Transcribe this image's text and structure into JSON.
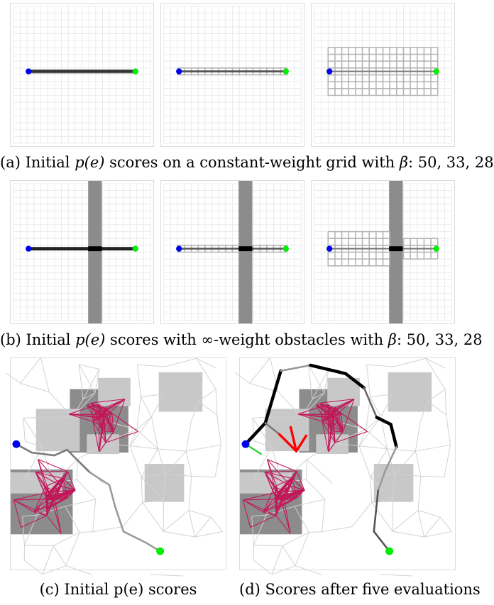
{
  "captions": {
    "a": {
      "prefix": "(a) Initial ",
      "math": "p(e)",
      "suffix": " scores on a constant-weight grid with ",
      "beta": "β",
      "values": ": 50, 33, 28"
    },
    "b": {
      "prefix": "(b) Initial ",
      "math": "p(e)",
      "middle": " scores with ",
      "inf": "∞",
      "suffix": "-weight obstacles with ",
      "beta": "β",
      "values": ": 50, 33, 28"
    },
    "c": {
      "prefix": "(c) Initial ",
      "math": "p(e)",
      "suffix": " scores"
    },
    "d": {
      "text": "(d) Scores after five evaluations"
    }
  },
  "colors": {
    "start": "#0000ee",
    "goal": "#00ee00",
    "obstacle_dark": "#8c8c8c",
    "obstacle_light": "#c8c8c8",
    "grid": "#e6e6e6",
    "graph_edge": "#d2d2d2",
    "invalid_edge": "#c2185b",
    "evaluated_valid": "#000000",
    "evaluated_invalid": "#ff0000",
    "candidate_edge": "#1ed21e"
  }
}
